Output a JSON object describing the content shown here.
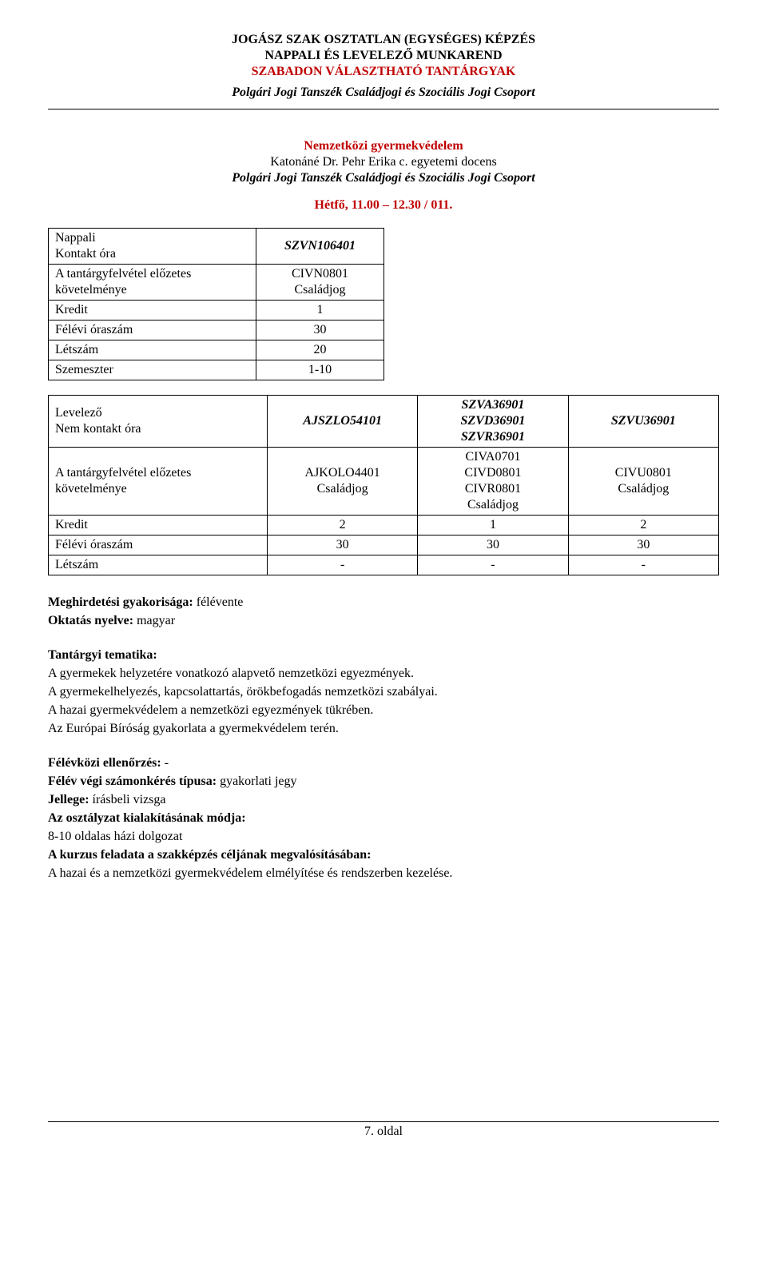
{
  "header": {
    "line1": "JOGÁSZ SZAK OSZTATLAN (EGYSÉGES) KÉPZÉS",
    "line2": "NAPPALI ÉS LEVELEZŐ MUNKAREND",
    "line3": "SZABADON VÁLASZTHATÓ TANTÁRGYAK",
    "subheader": "Polgári Jogi Tanszék Családjogi és Szociális Jogi Csoport"
  },
  "course": {
    "title": "Nemzetközi gyermekvédelem",
    "lecturer": "Katonáné Dr. Pehr Erika c. egyetemi docens",
    "dept_line": "Polgári Jogi Tanszék Családjogi és Szociális Jogi Csoport",
    "schedule": "Hétfő, 11.00 – 12.30 / 011."
  },
  "table1": {
    "rows": {
      "nappali_label": "Nappali",
      "kontakt_label": "Kontakt óra",
      "code": "SZVN106401",
      "prereq_label1": "A tantárgyfelvétel előzetes",
      "prereq_label2": "követelménye",
      "prereq_val1": "CIVN0801",
      "prereq_val2": "Családjog",
      "kredit_label": "Kredit",
      "kredit_val": "1",
      "felevi_label": "Félévi óraszám",
      "felevi_val": "30",
      "letszam_label": "Létszám",
      "letszam_val": "20",
      "szemeszter_label": "Szemeszter",
      "szemeszter_val": "1-10"
    }
  },
  "table2": {
    "row1": {
      "label1": "Levelező",
      "label2": "Nem kontakt óra",
      "c1": "AJSZLO54101",
      "c2a": "SZVA36901",
      "c2b": "SZVD36901",
      "c2c": "SZVR36901",
      "c3": "SZVU36901"
    },
    "row2": {
      "label1": "A tantárgyfelvétel előzetes",
      "label2": "követelménye",
      "c1a": "AJKOLO4401",
      "c1b": "Családjog",
      "c2a": "CIVA0701",
      "c2b": "CIVD0801",
      "c2c": "CIVR0801",
      "c2d": "Családjog",
      "c3a": "CIVU0801",
      "c3b": "Családjog"
    },
    "row3": {
      "label": "Kredit",
      "c1": "2",
      "c2": "1",
      "c3": "2"
    },
    "row4": {
      "label": "Félévi óraszám",
      "c1": "30",
      "c2": "30",
      "c3": "30"
    },
    "row5": {
      "label": "Létszám",
      "c1": "-",
      "c2": "-",
      "c3": "-"
    }
  },
  "body": {
    "freq_label": "Meghirdetési gyakorisága:",
    "freq_val": " félévente",
    "lang_label": "Oktatás nyelve:",
    "lang_val": " magyar",
    "tematika_label": "Tantárgyi tematika:",
    "t1": "A gyermekek helyzetére vonatkozó alapvető nemzetközi egyezmények.",
    "t2": "A gyermekelhelyezés, kapcsolattartás, örökbefogadás nemzetközi szabályai.",
    "t3": "A hazai gyermekvédelem a nemzetközi egyezmények tükrében.",
    "t4": "Az Európai Bíróság gyakorlata a gyermekvédelem terén.",
    "fk_label": "Félévközi ellenőrzés:",
    "fk_val": " -",
    "szamon_label": "Félév végi számonkérés típusa:",
    "szamon_val": " gyakorlati jegy",
    "jellege_label": "Jellege:",
    "jellege_val": " írásbeli vizsga",
    "osztaly_label": "Az osztályzat kialakításának módja:",
    "osztaly_val": "8-10 oldalas házi dolgozat",
    "kurzus_label": "A kurzus feladata a szakképzés céljának megvalósításában:",
    "kurzus_val": "A hazai és a nemzetközi gyermekvédelem elmélyítése és rendszerben kezelése."
  },
  "footer": {
    "page": "7. oldal"
  },
  "styling": {
    "accent_color": "#c00000",
    "text_color": "#000000",
    "background_color": "#ffffff",
    "border_color": "#000000",
    "base_fontsize": 16
  }
}
